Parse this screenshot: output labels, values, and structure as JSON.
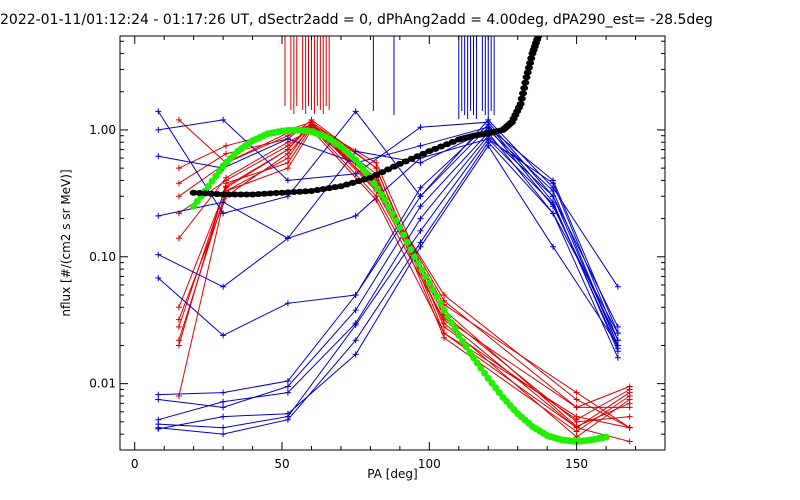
{
  "chart_data": {
    "type": "line",
    "title": "2022-01-11/01:12:24 - 01:17:26 UT, dSectr2add = 0, dPhAng2add = 4.00deg, dPA290_est= -28.5deg",
    "xlabel": "PA [deg]",
    "ylabel": "nflux [#/(cm2 s sr MeV)]",
    "xlim": [
      -5,
      180
    ],
    "ylim": [
      0.003,
      5.5
    ],
    "yscale": "log",
    "xticks": [
      0,
      50,
      100,
      150
    ],
    "xtick_labels": [
      "0",
      "50",
      "100",
      "150"
    ],
    "yticks": [
      0.01,
      0.1,
      1.0
    ],
    "ytick_labels": [
      "0.01",
      "0.10",
      "1.00"
    ],
    "colors": {
      "red": "#dd0000",
      "blue": "#0000cc",
      "green": "#22ee00",
      "black": "#000000"
    },
    "series": [
      {
        "name": "red-1",
        "color": "red",
        "x": [
          15,
          31,
          52,
          60,
          82,
          105,
          150,
          168
        ],
        "y": [
          1.2,
          0.55,
          0.9,
          1.1,
          0.55,
          0.033,
          0.0065,
          0.0095
        ]
      },
      {
        "name": "red-2",
        "color": "red",
        "x": [
          15,
          31,
          52,
          60,
          82,
          105,
          150,
          168
        ],
        "y": [
          0.5,
          0.75,
          1.0,
          1.15,
          0.5,
          0.028,
          0.0052,
          0.009
        ]
      },
      {
        "name": "red-3",
        "color": "red",
        "x": [
          15,
          31,
          52,
          60,
          82,
          105,
          150,
          168
        ],
        "y": [
          0.38,
          0.65,
          0.85,
          1.2,
          0.5,
          0.025,
          0.0045,
          0.0085
        ]
      },
      {
        "name": "red-4",
        "color": "red",
        "x": [
          15,
          31,
          52,
          60,
          82,
          105,
          150,
          168
        ],
        "y": [
          0.3,
          0.55,
          0.95,
          1.1,
          0.45,
          0.023,
          0.0042,
          0.008
        ]
      },
      {
        "name": "red-5",
        "color": "red",
        "x": [
          15,
          31,
          52,
          60,
          82,
          105,
          150,
          168
        ],
        "y": [
          0.22,
          0.4,
          0.75,
          1.05,
          0.42,
          0.03,
          0.0038,
          0.0075
        ]
      },
      {
        "name": "red-6",
        "color": "red",
        "x": [
          15,
          31,
          52,
          60,
          82,
          105,
          150,
          168
        ],
        "y": [
          0.14,
          0.42,
          0.8,
          1.0,
          0.4,
          0.038,
          0.0046,
          0.007
        ]
      },
      {
        "name": "red-7",
        "color": "red",
        "x": [
          15,
          31,
          52,
          60,
          82,
          105,
          150,
          168
        ],
        "y": [
          0.04,
          0.35,
          0.7,
          1.1,
          0.38,
          0.045,
          0.0065,
          0.0065
        ]
      },
      {
        "name": "red-8",
        "color": "red",
        "x": [
          15,
          31,
          52,
          60,
          82,
          105,
          150,
          168
        ],
        "y": [
          0.032,
          0.3,
          0.65,
          1.05,
          0.36,
          0.05,
          0.0075,
          0.0045
        ]
      },
      {
        "name": "red-9",
        "color": "red",
        "x": [
          15,
          31,
          52,
          60,
          82,
          105,
          150,
          168
        ],
        "y": [
          0.028,
          0.36,
          0.7,
          1.15,
          0.34,
          0.042,
          0.0085,
          0.0045
        ]
      },
      {
        "name": "red-10",
        "color": "red",
        "x": [
          15,
          31,
          52,
          60,
          82,
          105,
          150,
          168
        ],
        "y": [
          0.022,
          0.33,
          0.6,
          1.1,
          0.33,
          0.035,
          0.005,
          0.0055
        ]
      },
      {
        "name": "red-11",
        "color": "red",
        "x": [
          15,
          31,
          52,
          60,
          82,
          105,
          150,
          168
        ],
        "y": [
          0.02,
          0.38,
          0.55,
          1.05,
          0.3,
          0.032,
          0.0045,
          0.0035
        ]
      },
      {
        "name": "red-12",
        "color": "red",
        "x": [
          15,
          31,
          52,
          60,
          82,
          105,
          150,
          168
        ],
        "y": [
          0.008,
          0.33,
          0.5,
          1.0,
          0.28,
          0.025,
          0.0055,
          0.0045
        ]
      },
      {
        "name": "blue-1",
        "color": "blue",
        "x": [
          8,
          30,
          52,
          75,
          97,
          120,
          142,
          164
        ],
        "y": [
          1.4,
          0.22,
          0.3,
          1.4,
          0.3,
          1.2,
          0.35,
          0.058
        ]
      },
      {
        "name": "blue-2",
        "color": "blue",
        "x": [
          8,
          30,
          52,
          75,
          97,
          120,
          142,
          164
        ],
        "y": [
          1.0,
          1.2,
          0.4,
          0.45,
          1.05,
          1.15,
          0.3,
          0.028
        ]
      },
      {
        "name": "blue-3",
        "color": "blue",
        "x": [
          8,
          30,
          52,
          75,
          97,
          120,
          142,
          164
        ],
        "y": [
          0.62,
          0.5,
          0.85,
          0.55,
          0.75,
          1.05,
          0.4,
          0.025
        ]
      },
      {
        "name": "blue-4",
        "color": "blue",
        "x": [
          8,
          30,
          52,
          75,
          97,
          120,
          142,
          164
        ],
        "y": [
          0.21,
          0.27,
          0.14,
          0.21,
          0.6,
          0.85,
          0.38,
          0.022
        ]
      },
      {
        "name": "blue-5",
        "color": "blue",
        "x": [
          8,
          30,
          52,
          75,
          97,
          120,
          142,
          164
        ],
        "y": [
          0.104,
          0.058,
          0.14,
          0.68,
          0.55,
          1.0,
          0.33,
          0.02
        ]
      },
      {
        "name": "blue-6",
        "color": "blue",
        "x": [
          8,
          30,
          52,
          75,
          97,
          120,
          142,
          164
        ],
        "y": [
          0.068,
          0.024,
          0.043,
          0.05,
          0.35,
          1.1,
          0.27,
          0.018
        ]
      },
      {
        "name": "blue-7",
        "color": "blue",
        "x": [
          8,
          30,
          52,
          75,
          97,
          120,
          142,
          164
        ],
        "y": [
          0.0082,
          0.0085,
          0.0105,
          0.05,
          0.3,
          1.05,
          0.25,
          0.022
        ]
      },
      {
        "name": "blue-8",
        "color": "blue",
        "x": [
          8,
          30,
          52,
          75,
          97,
          120,
          142,
          164
        ],
        "y": [
          0.0075,
          0.0065,
          0.0095,
          0.038,
          0.25,
          0.95,
          0.22,
          0.025
        ]
      },
      {
        "name": "blue-9",
        "color": "blue",
        "x": [
          8,
          30,
          52,
          75,
          97,
          120,
          142,
          164
        ],
        "y": [
          0.0052,
          0.0072,
          0.0085,
          0.03,
          0.2,
          0.9,
          0.3,
          0.02
        ]
      },
      {
        "name": "blue-10",
        "color": "blue",
        "x": [
          8,
          30,
          52,
          75,
          97,
          120,
          142,
          164
        ],
        "y": [
          0.0048,
          0.0045,
          0.0055,
          0.029,
          0.16,
          0.85,
          0.26,
          0.019
        ]
      },
      {
        "name": "blue-11",
        "color": "blue",
        "x": [
          8,
          30,
          52,
          75,
          97,
          120,
          142,
          164
        ],
        "y": [
          0.0045,
          0.004,
          0.0052,
          0.022,
          0.13,
          0.8,
          0.22,
          0.016
        ]
      },
      {
        "name": "blue-12",
        "color": "blue",
        "x": [
          8,
          30,
          52,
          75,
          97,
          120,
          142,
          164
        ],
        "y": [
          0.0044,
          0.0055,
          0.0058,
          0.017,
          0.12,
          0.75,
          0.12,
          0.02
        ]
      },
      {
        "name": "fit-green",
        "color": "green",
        "style": "dots",
        "x": [
          20,
          25,
          30,
          35,
          40,
          45,
          50,
          55,
          60,
          65,
          70,
          75,
          80,
          85,
          90,
          95,
          100,
          105,
          110,
          115,
          120,
          125,
          130,
          135,
          140,
          145,
          150,
          155,
          160
        ],
        "y": [
          0.25,
          0.36,
          0.52,
          0.68,
          0.82,
          0.93,
          0.98,
          1.0,
          0.97,
          0.88,
          0.74,
          0.58,
          0.42,
          0.28,
          0.17,
          0.1,
          0.062,
          0.038,
          0.024,
          0.016,
          0.011,
          0.0078,
          0.0058,
          0.0046,
          0.0039,
          0.0036,
          0.0035,
          0.0036,
          0.0038
        ]
      },
      {
        "name": "fit-black",
        "color": "black",
        "style": "dots",
        "x": [
          20,
          30,
          40,
          50,
          60,
          70,
          80,
          90,
          100,
          110,
          115,
          120,
          125,
          128,
          131,
          133,
          135,
          137
        ],
        "y": [
          0.32,
          0.31,
          0.31,
          0.32,
          0.33,
          0.36,
          0.42,
          0.54,
          0.68,
          0.84,
          0.9,
          0.94,
          1.0,
          1.15,
          1.6,
          2.6,
          4.0,
          5.5
        ]
      }
    ],
    "spikes": [
      {
        "color": "red",
        "x": [
          51,
          53,
          54,
          55,
          57,
          58,
          59,
          60,
          61,
          62,
          63,
          64,
          65,
          66
        ]
      },
      {
        "color": "blue",
        "x": [
          81,
          88,
          110,
          111,
          112,
          113,
          114,
          115,
          116,
          118,
          119,
          120,
          121,
          122
        ]
      }
    ]
  }
}
